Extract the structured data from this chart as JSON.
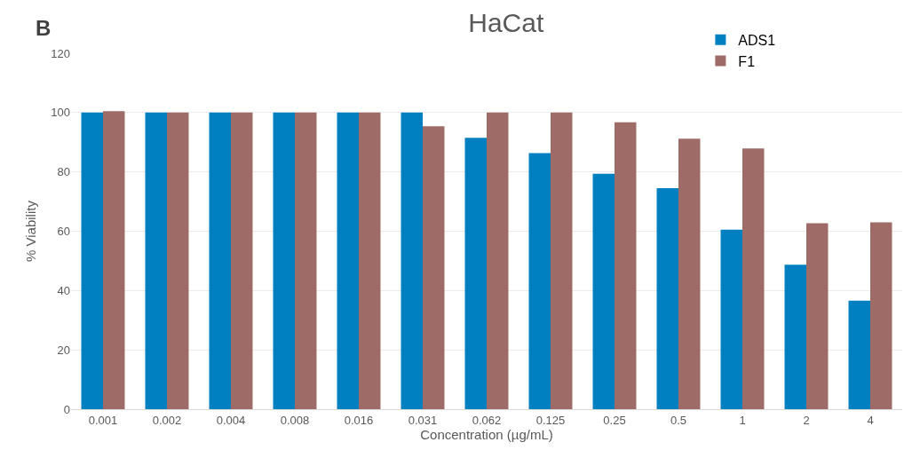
{
  "chart_data": {
    "type": "bar",
    "title": "HaCat",
    "xlabel": "Concentration (µg/mL)",
    "ylabel": "% Viability",
    "annotations": [
      "B"
    ],
    "categories": [
      "0.001",
      "0.002",
      "0.004",
      "0.008",
      "0.016",
      "0.031",
      "0.062",
      "0.125",
      "0.25",
      "0.5",
      "1",
      "2",
      "4"
    ],
    "series": [
      {
        "name": "ADS1",
        "color": "#0080c0",
        "values": [
          100,
          100,
          100,
          100,
          100,
          100,
          91.5,
          86.3,
          79.4,
          74.5,
          60.5,
          48.7,
          36.6
        ]
      },
      {
        "name": "F1",
        "color": "#9e6b66",
        "values": [
          100.5,
          100,
          100,
          100,
          100,
          95.4,
          100,
          100,
          96.7,
          91.2,
          87.9,
          62.7,
          63
        ]
      }
    ],
    "ylim": [
      0,
      120
    ],
    "yticks": [
      0,
      20,
      40,
      60,
      80,
      100,
      120
    ],
    "grid": "y",
    "legend": "top right"
  }
}
